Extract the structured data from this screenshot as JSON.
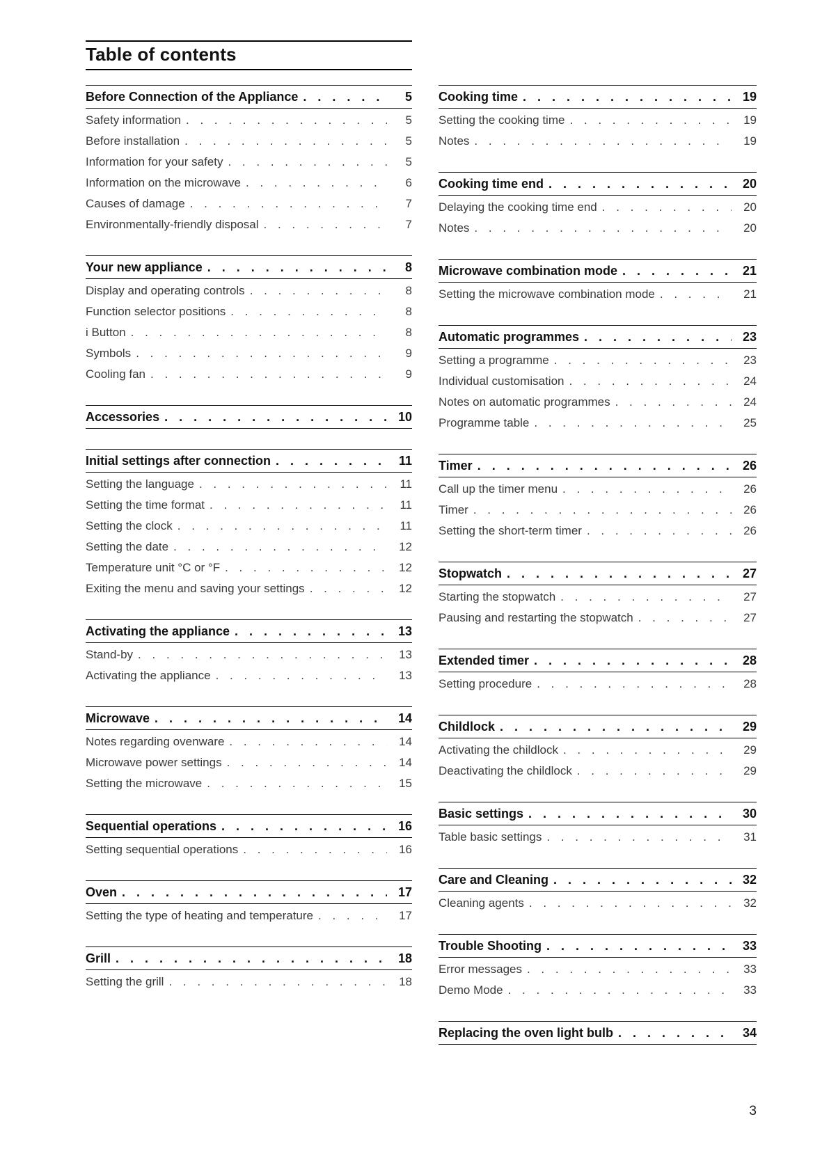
{
  "title": "Table of contents",
  "footer": {
    "page_number": "3"
  },
  "toc": {
    "columns": [
      {
        "sections": [
          {
            "title": "Before Connection of the Appliance",
            "page": "5",
            "entries": [
              {
                "label": "Safety information",
                "page": "5"
              },
              {
                "label": "Before installation",
                "page": "5"
              },
              {
                "label": "Information for your safety",
                "page": "5"
              },
              {
                "label": "Information on the microwave",
                "page": "6"
              },
              {
                "label": "Causes of damage",
                "page": "7"
              },
              {
                "label": "Environmentally-friendly disposal",
                "page": "7"
              }
            ]
          },
          {
            "title": "Your new appliance",
            "page": "8",
            "entries": [
              {
                "label": "Display and operating controls",
                "page": "8"
              },
              {
                "label": "Function selector positions",
                "page": "8"
              },
              {
                "label": "i Button",
                "page": "8"
              },
              {
                "label": "Symbols",
                "page": "9"
              },
              {
                "label": "Cooling fan",
                "page": "9"
              }
            ]
          },
          {
            "title": "Accessories",
            "page": "10",
            "entries": []
          },
          {
            "title": "Initial settings after connection",
            "page": "11",
            "entries": [
              {
                "label": "Setting the language",
                "page": "11"
              },
              {
                "label": "Setting the time format",
                "page": "11"
              },
              {
                "label": "Setting the clock",
                "page": "11"
              },
              {
                "label": "Setting the date",
                "page": "12"
              },
              {
                "label": "Temperature unit °C or °F",
                "page": "12"
              },
              {
                "label": "Exiting the menu and saving your settings",
                "page": "12"
              }
            ]
          },
          {
            "title": "Activating the appliance",
            "page": "13",
            "entries": [
              {
                "label": "Stand-by",
                "page": "13"
              },
              {
                "label": "Activating the appliance",
                "page": "13"
              }
            ]
          },
          {
            "title": "Microwave",
            "page": "14",
            "entries": [
              {
                "label": "Notes regarding ovenware",
                "page": "14"
              },
              {
                "label": "Microwave power settings",
                "page": "14"
              },
              {
                "label": "Setting the microwave",
                "page": "15"
              }
            ]
          },
          {
            "title": "Sequential operations",
            "page": "16",
            "entries": [
              {
                "label": "Setting sequential operations",
                "page": "16"
              }
            ]
          },
          {
            "title": "Oven",
            "page": "17",
            "entries": [
              {
                "label": "Setting the type of heating and temperature",
                "page": "17"
              }
            ]
          },
          {
            "title": "Grill",
            "page": "18",
            "entries": [
              {
                "label": "Setting the grill",
                "page": "18"
              }
            ]
          }
        ]
      },
      {
        "sections": [
          {
            "title": "Cooking time",
            "page": "19",
            "entries": [
              {
                "label": "Setting the cooking time",
                "page": "19"
              },
              {
                "label": "Notes",
                "page": "19"
              }
            ]
          },
          {
            "title": "Cooking time end",
            "page": "20",
            "entries": [
              {
                "label": "Delaying the cooking time end",
                "page": "20"
              },
              {
                "label": "Notes",
                "page": "20"
              }
            ]
          },
          {
            "title": "Microwave combination mode",
            "page": "21",
            "entries": [
              {
                "label": "Setting the microwave combination mode",
                "page": "21"
              }
            ]
          },
          {
            "title": "Automatic programmes",
            "page": "23",
            "entries": [
              {
                "label": "Setting a programme",
                "page": "23"
              },
              {
                "label": "Individual customisation",
                "page": "24"
              },
              {
                "label": "Notes on automatic programmes",
                "page": "24"
              },
              {
                "label": "Programme table",
                "page": "25"
              }
            ]
          },
          {
            "title": "Timer",
            "page": "26",
            "entries": [
              {
                "label": "Call up the timer menu",
                "page": "26"
              },
              {
                "label": "Timer",
                "page": "26"
              },
              {
                "label": "Setting the short-term timer",
                "page": "26"
              }
            ]
          },
          {
            "title": "Stopwatch",
            "page": "27",
            "entries": [
              {
                "label": "Starting the stopwatch",
                "page": "27"
              },
              {
                "label": "Pausing and restarting the stopwatch",
                "page": "27"
              }
            ]
          },
          {
            "title": "Extended timer",
            "page": "28",
            "entries": [
              {
                "label": "Setting procedure",
                "page": "28"
              }
            ]
          },
          {
            "title": "Childlock",
            "page": "29",
            "entries": [
              {
                "label": "Activating the childlock",
                "page": "29"
              },
              {
                "label": "Deactivating the childlock",
                "page": "29"
              }
            ]
          },
          {
            "title": "Basic settings",
            "page": "30",
            "entries": [
              {
                "label": "Table basic settings",
                "page": "31"
              }
            ]
          },
          {
            "title": "Care and Cleaning",
            "page": "32",
            "entries": [
              {
                "label": "Cleaning agents",
                "page": "32"
              }
            ]
          },
          {
            "title": "Trouble Shooting",
            "page": "33",
            "entries": [
              {
                "label": "Error messages",
                "page": "33"
              },
              {
                "label": "Demo Mode",
                "page": "33"
              }
            ]
          },
          {
            "title": "Replacing the oven light bulb",
            "page": "34",
            "entries": []
          }
        ]
      }
    ]
  }
}
